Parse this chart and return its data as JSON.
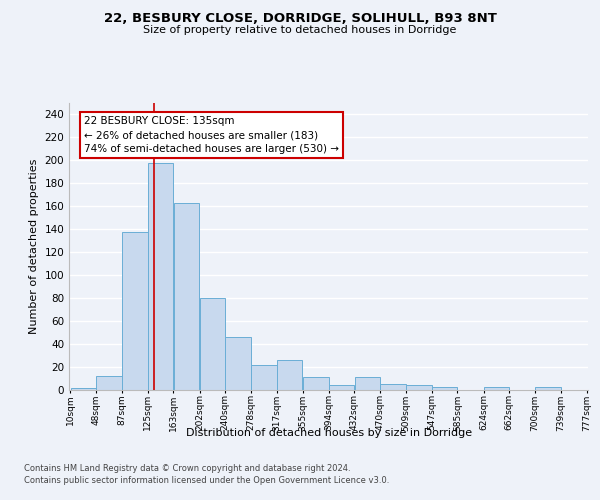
{
  "title1": "22, BESBURY CLOSE, DORRIDGE, SOLIHULL, B93 8NT",
  "title2": "Size of property relative to detached houses in Dorridge",
  "xlabel": "Distribution of detached houses by size in Dorridge",
  "ylabel": "Number of detached properties",
  "bar_edges": [
    10,
    48,
    87,
    125,
    163,
    202,
    240,
    278,
    317,
    355,
    394,
    432,
    470,
    509,
    547,
    585,
    624,
    662,
    700,
    739,
    777
  ],
  "bar_heights": [
    2,
    12,
    137,
    197,
    163,
    80,
    46,
    22,
    26,
    11,
    4,
    11,
    5,
    4,
    3,
    0,
    3,
    0,
    3,
    0
  ],
  "bar_color": "#c8d9ee",
  "bar_edge_color": "#6aaed6",
  "property_size": 135,
  "vline_color": "#cc0000",
  "annotation_text": "22 BESBURY CLOSE: 135sqm\n← 26% of detached houses are smaller (183)\n74% of semi-detached houses are larger (530) →",
  "annotation_box_color": "#ffffff",
  "annotation_box_edge": "#cc0000",
  "ylim": [
    0,
    250
  ],
  "yticks": [
    0,
    20,
    40,
    60,
    80,
    100,
    120,
    140,
    160,
    180,
    200,
    220,
    240
  ],
  "footnote1": "Contains HM Land Registry data © Crown copyright and database right 2024.",
  "footnote2": "Contains public sector information licensed under the Open Government Licence v3.0.",
  "bg_color": "#eef2f9",
  "plot_bg_color": "#eef2f9",
  "grid_color": "#ffffff",
  "tick_labels": [
    "10sqm",
    "48sqm",
    "87sqm",
    "125sqm",
    "163sqm",
    "202sqm",
    "240sqm",
    "278sqm",
    "317sqm",
    "355sqm",
    "394sqm",
    "432sqm",
    "470sqm",
    "509sqm",
    "547sqm",
    "585sqm",
    "624sqm",
    "662sqm",
    "700sqm",
    "739sqm",
    "777sqm"
  ],
  "title1_fontsize": 9.5,
  "title2_fontsize": 8,
  "ylabel_fontsize": 8,
  "xlabel_fontsize": 8,
  "ytick_fontsize": 7.5,
  "xtick_fontsize": 6.5,
  "footnote_fontsize": 6
}
